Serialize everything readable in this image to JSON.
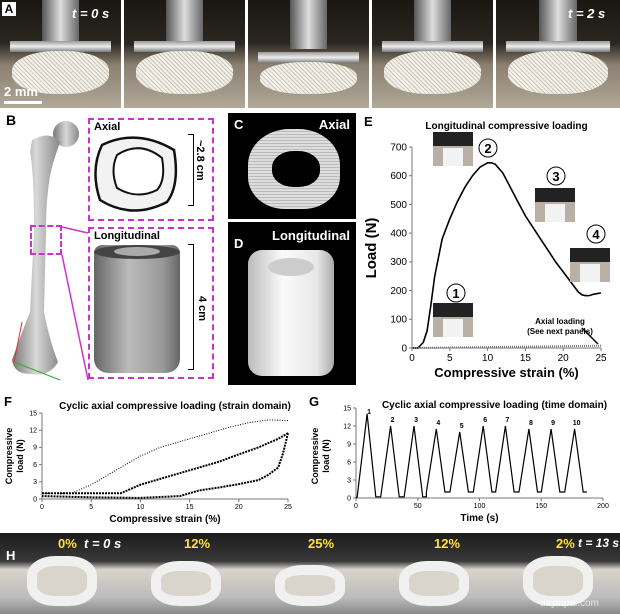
{
  "panel_a": {
    "label": "A",
    "t_start": "t = 0 s",
    "t_end": "t = 2 s",
    "scale": "2 mm"
  },
  "panel_b": {
    "label": "B",
    "axial": "Axial",
    "longitudinal": "Longitudinal",
    "axial_dim": "~2.8 cm",
    "long_dim": "4 cm"
  },
  "panel_c": {
    "label": "C",
    "title": "Axial"
  },
  "panel_d": {
    "label": "D",
    "title": "Longitudinal"
  },
  "panel_h": {
    "label": "H",
    "frames": [
      {
        "strain": "0%",
        "time": "t = 0 s"
      },
      {
        "strain": "12%",
        "time": ""
      },
      {
        "strain": "25%",
        "time": ""
      },
      {
        "strain": "12%",
        "time": ""
      },
      {
        "strain": "2%",
        "time": "t = 13 s"
      }
    ],
    "watermark": "dayinpai.com"
  },
  "chart_data": [
    {
      "panel": "E",
      "type": "line",
      "title": "Longitudinal compressive loading",
      "xlabel": "Compressive strain (%)",
      "ylabel": "Load (N)",
      "xlim": [
        0,
        25
      ],
      "ylim": [
        0,
        700
      ],
      "xticks": [
        "0",
        "5",
        "10",
        "15",
        "20",
        "25"
      ],
      "yticks": [
        "0",
        "100",
        "200",
        "300",
        "400",
        "500",
        "600",
        "700"
      ],
      "series": [
        {
          "x": [
            0,
            0.8,
            1.5,
            2,
            2.5,
            3,
            4,
            5,
            6,
            7,
            8,
            9,
            10,
            10.5,
            11,
            12,
            13,
            14,
            15,
            16,
            17,
            18,
            19,
            20,
            21,
            22,
            22.5,
            23,
            23.5,
            24,
            25
          ],
          "y": [
            0,
            0,
            20,
            60,
            150,
            250,
            380,
            450,
            510,
            560,
            600,
            630,
            645,
            645,
            640,
            610,
            560,
            510,
            460,
            420,
            380,
            340,
            300,
            265,
            230,
            195,
            185,
            182,
            183,
            187,
            192
          ]
        },
        {
          "x": [
            0,
            25
          ],
          "y": [
            0,
            8
          ]
        }
      ],
      "markers": [
        "1",
        "2",
        "3",
        "4"
      ],
      "annotation": "Axial loading\n(See next panels)",
      "annotation_lines": [
        "Axial loading",
        "(See next panels)"
      ]
    },
    {
      "panel": "F",
      "type": "line",
      "title": "Cyclic axial compressive loading (strain domain)",
      "xlabel": "Compressive strain (%)",
      "ylabel": "Compressive load (N)",
      "ylabel_lines": [
        "Compressive",
        "load (N)"
      ],
      "xlim": [
        0,
        25
      ],
      "ylim": [
        0,
        15
      ],
      "xticks": [
        "0",
        "5",
        "10",
        "15",
        "20",
        "25"
      ],
      "yticks": [
        "0",
        "3",
        "6",
        "9",
        "12",
        "15"
      ],
      "series": [
        {
          "x": [
            0,
            3,
            5,
            8,
            10,
            12,
            15,
            17,
            19,
            21,
            23,
            25
          ],
          "y": [
            1,
            1,
            2.5,
            5.5,
            7.5,
            9,
            10.5,
            11.5,
            12.5,
            13.3,
            13.8,
            13.7
          ]
        },
        {
          "x": [
            0,
            8,
            10,
            12,
            15,
            18,
            20,
            22,
            24,
            25
          ],
          "y": [
            1,
            1,
            2.5,
            3.5,
            5,
            6.5,
            7.8,
            9,
            10.5,
            11.5
          ]
        },
        {
          "x": [
            25,
            24.5,
            24,
            23,
            22,
            20,
            18,
            16,
            14,
            10,
            5,
            0
          ],
          "y": [
            11.5,
            8,
            5.5,
            4.2,
            3.3,
            2.6,
            2,
            1.5,
            0.5,
            0.2,
            0.3,
            0.5
          ]
        }
      ]
    },
    {
      "panel": "G",
      "type": "line",
      "title": "Cyclic axial compressive loading (time domain)",
      "xlabel": "Time (s)",
      "ylabel": "Compressive load (N)",
      "ylabel_lines": [
        "Compressive",
        "load (N)"
      ],
      "xlim": [
        0,
        200
      ],
      "ylim": [
        0,
        15
      ],
      "xticks": [
        "0",
        "50",
        "100",
        "150",
        "200"
      ],
      "yticks": [
        "0",
        "3",
        "6",
        "9",
        "12",
        "15"
      ],
      "cycle_labels": [
        "1",
        "2",
        "3",
        "4",
        "5",
        "6",
        "7",
        "8",
        "9",
        "10"
      ],
      "peak_times": [
        9,
        28,
        47,
        65,
        84,
        103,
        121,
        140,
        158,
        177
      ],
      "peak_loads": [
        14,
        12,
        12,
        11.5,
        11,
        12,
        12,
        11.5,
        11.5,
        11.5
      ]
    }
  ]
}
